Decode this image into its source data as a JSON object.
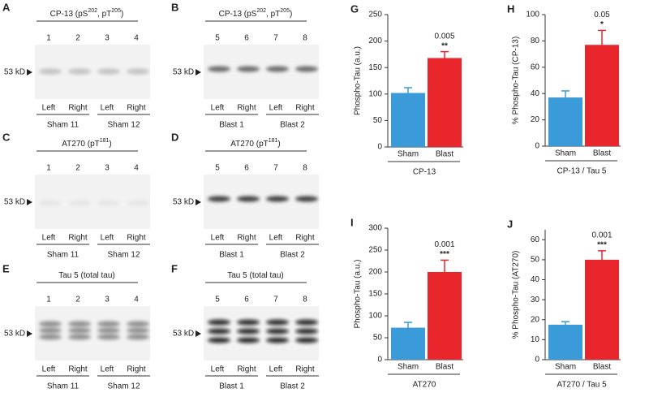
{
  "blots": [
    {
      "letter": "A",
      "title_parts": [
        {
          "text": "CP-13 (pS"
        },
        {
          "sup": "202"
        },
        {
          "text": ", pT"
        },
        {
          "sup": "205"
        },
        {
          "text": ")"
        }
      ],
      "lanes": [
        "1",
        "2",
        "3",
        "4"
      ],
      "marker": "53 kD",
      "lane_labels": [
        "Left",
        "Right",
        "Left",
        "Right"
      ],
      "groups": [
        "Sham 11",
        "Sham 12"
      ]
    },
    {
      "letter": "B",
      "title_parts": [
        {
          "text": "CP-13 (pS"
        },
        {
          "sup": "202"
        },
        {
          "text": ", pT"
        },
        {
          "sup": "205"
        },
        {
          "text": ")"
        }
      ],
      "lanes": [
        "5",
        "6",
        "7",
        "8"
      ],
      "marker": "53 kD",
      "lane_labels": [
        "Left",
        "Right",
        "Left",
        "Right"
      ],
      "groups": [
        "Blast 1",
        "Blast 2"
      ]
    },
    {
      "letter": "C",
      "title_parts": [
        {
          "text": "AT270 (pT"
        },
        {
          "sup": "181"
        },
        {
          "text": ")"
        }
      ],
      "lanes": [
        "1",
        "2",
        "3",
        "4"
      ],
      "marker": "53 kD",
      "lane_labels": [
        "Left",
        "Right",
        "Left",
        "Right"
      ],
      "groups": [
        "Sham 11",
        "Sham 12"
      ]
    },
    {
      "letter": "D",
      "title_parts": [
        {
          "text": "AT270 (pT"
        },
        {
          "sup": "181"
        },
        {
          "text": ")"
        }
      ],
      "lanes": [
        "5",
        "6",
        "7",
        "8"
      ],
      "marker": "53 kD",
      "lane_labels": [
        "Left",
        "Right",
        "Left",
        "Right"
      ],
      "groups": [
        "Blast 1",
        "Blast 2"
      ]
    },
    {
      "letter": "E",
      "title_parts": [
        {
          "text": "Tau 5 (total tau)"
        }
      ],
      "lanes": [
        "1",
        "2",
        "3",
        "4"
      ],
      "marker": "53 kD",
      "lane_labels": [
        "Left",
        "Right",
        "Left",
        "Right"
      ],
      "groups": [
        "Sham 11",
        "Sham 12"
      ]
    },
    {
      "letter": "F",
      "title_parts": [
        {
          "text": "Tau 5 (total tau)"
        }
      ],
      "lanes": [
        "5",
        "6",
        "7",
        "8"
      ],
      "marker": "53 kD",
      "lane_labels": [
        "Left",
        "Right",
        "Left",
        "Right"
      ],
      "groups": [
        "Blast 1",
        "Blast 2"
      ]
    }
  ],
  "chart_data": [
    {
      "type": "bar",
      "letter": "G",
      "ylabel": "Phospho-Tau (a.u.)",
      "categories": [
        "Sham",
        "Blast"
      ],
      "values": [
        102,
        168
      ],
      "errors": [
        10,
        12
      ],
      "colors": [
        "#3b9ad8",
        "#e8262b"
      ],
      "ylim": [
        0,
        250
      ],
      "yticks": [
        0,
        50,
        100,
        150,
        200,
        250
      ],
      "p_label": "0.005",
      "stars": "**",
      "group_label": "CP-13"
    },
    {
      "type": "bar",
      "letter": "H",
      "ylabel": "% Phospho-Tau (CP-13)",
      "categories": [
        "Sham",
        "Blast"
      ],
      "values": [
        37,
        77
      ],
      "errors": [
        5,
        11
      ],
      "colors": [
        "#3b9ad8",
        "#e8262b"
      ],
      "ylim": [
        0,
        100
      ],
      "yticks": [
        0,
        20,
        40,
        60,
        80,
        100
      ],
      "p_label": "0.05",
      "stars": "*",
      "group_label": "CP-13 / Tau 5"
    },
    {
      "type": "bar",
      "letter": "I",
      "ylabel": "Phospho-Tau (a.u.)",
      "categories": [
        "Sham",
        "Blast"
      ],
      "values": [
        73,
        200
      ],
      "errors": [
        12,
        27
      ],
      "colors": [
        "#3b9ad8",
        "#e8262b"
      ],
      "ylim": [
        0,
        300
      ],
      "yticks": [
        0,
        50,
        100,
        150,
        200,
        250,
        300
      ],
      "p_label": "0.001",
      "stars": "***",
      "group_label": "AT270"
    },
    {
      "type": "bar",
      "letter": "J",
      "ylabel": "% Phospho-Tau (AT270)",
      "categories": [
        "Sham",
        "Blast"
      ],
      "values": [
        17.5,
        50
      ],
      "errors": [
        1.5,
        4.5
      ],
      "colors": [
        "#3b9ad8",
        "#e8262b"
      ],
      "ylim": [
        0,
        65
      ],
      "yticks": [
        0,
        10,
        20,
        30,
        40,
        50,
        60
      ],
      "p_label": "0.001",
      "stars": "***",
      "group_label": "AT270 / Tau 5"
    }
  ]
}
